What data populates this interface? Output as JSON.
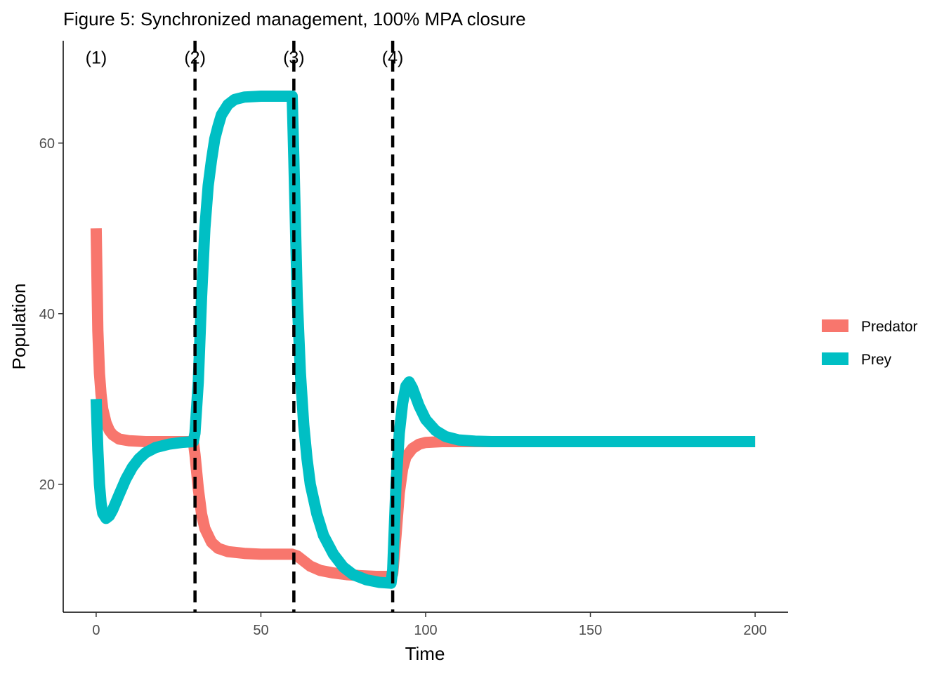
{
  "chart_data": {
    "type": "line",
    "title": "Figure 5: Synchronized management, 100% MPA closure",
    "xlabel": "Time",
    "ylabel": "Population",
    "xlim": [
      -10,
      210
    ],
    "ylim": [
      5,
      72
    ],
    "xticks": [
      0,
      50,
      100,
      150,
      200
    ],
    "yticks": [
      20,
      40,
      60
    ],
    "grid": false,
    "legend_position": "right",
    "vlines": [
      30,
      60,
      90
    ],
    "annotations": [
      {
        "text": "(1)",
        "x": 0,
        "y": 70
      },
      {
        "text": "(2)",
        "x": 30,
        "y": 70
      },
      {
        "text": "(3)",
        "x": 60,
        "y": 70
      },
      {
        "text": "(4)",
        "x": 90,
        "y": 70
      }
    ],
    "series": [
      {
        "name": "Predator",
        "color": "#F8766D",
        "points": [
          [
            0,
            50
          ],
          [
            0.5,
            38
          ],
          [
            1,
            33
          ],
          [
            1.5,
            30.5
          ],
          [
            2,
            28.8
          ],
          [
            3,
            27.2
          ],
          [
            4,
            26.3
          ],
          [
            5,
            25.8
          ],
          [
            7,
            25.3
          ],
          [
            10,
            25.1
          ],
          [
            15,
            25.0
          ],
          [
            20,
            25.0
          ],
          [
            25,
            25.0
          ],
          [
            29.5,
            25.0
          ],
          [
            30,
            23.5
          ],
          [
            31,
            19.5
          ],
          [
            32,
            16.5
          ],
          [
            33,
            14.8
          ],
          [
            35,
            13.2
          ],
          [
            37,
            12.5
          ],
          [
            40,
            12.1
          ],
          [
            45,
            11.9
          ],
          [
            50,
            11.8
          ],
          [
            55,
            11.8
          ],
          [
            59.5,
            11.8
          ],
          [
            61,
            11.6
          ],
          [
            63,
            11.0
          ],
          [
            65,
            10.4
          ],
          [
            68,
            9.9
          ],
          [
            72,
            9.6
          ],
          [
            76,
            9.4
          ],
          [
            80,
            9.3
          ],
          [
            85,
            9.2
          ],
          [
            89.5,
            9.2
          ],
          [
            90,
            9.5
          ],
          [
            91,
            14
          ],
          [
            92,
            19
          ],
          [
            93,
            21.8
          ],
          [
            94,
            23.2
          ],
          [
            96,
            24.2
          ],
          [
            98,
            24.7
          ],
          [
            100,
            24.9
          ],
          [
            105,
            25.0
          ],
          [
            110,
            25.0
          ],
          [
            120,
            25.0
          ],
          [
            150,
            25.0
          ],
          [
            200,
            25.0
          ]
        ]
      },
      {
        "name": "Prey",
        "color": "#00BFC4",
        "points": [
          [
            0,
            30
          ],
          [
            0.5,
            24
          ],
          [
            1,
            20
          ],
          [
            1.5,
            17.8
          ],
          [
            2,
            16.6
          ],
          [
            3,
            16.0
          ],
          [
            4,
            16.3
          ],
          [
            5,
            17.0
          ],
          [
            7,
            18.8
          ],
          [
            9,
            20.6
          ],
          [
            11,
            22.0
          ],
          [
            13,
            23.0
          ],
          [
            15,
            23.7
          ],
          [
            18,
            24.3
          ],
          [
            22,
            24.7
          ],
          [
            26,
            24.9
          ],
          [
            29.5,
            25.0
          ],
          [
            30,
            26
          ],
          [
            31,
            32
          ],
          [
            32,
            42
          ],
          [
            33,
            50
          ],
          [
            34,
            55
          ],
          [
            35,
            58
          ],
          [
            36,
            60.5
          ],
          [
            37,
            62
          ],
          [
            38,
            63.3
          ],
          [
            40,
            64.5
          ],
          [
            42,
            65.1
          ],
          [
            45,
            65.4
          ],
          [
            50,
            65.5
          ],
          [
            55,
            65.5
          ],
          [
            59.5,
            65.5
          ],
          [
            60,
            58
          ],
          [
            61,
            42
          ],
          [
            62,
            33
          ],
          [
            63,
            27
          ],
          [
            64,
            23
          ],
          [
            65,
            20
          ],
          [
            67,
            16.5
          ],
          [
            69,
            14
          ],
          [
            72,
            11.8
          ],
          [
            75,
            10.3
          ],
          [
            78,
            9.4
          ],
          [
            82,
            8.8
          ],
          [
            86,
            8.5
          ],
          [
            89.5,
            8.4
          ],
          [
            90,
            10
          ],
          [
            91,
            20
          ],
          [
            92,
            26
          ],
          [
            93,
            29.5
          ],
          [
            94,
            31.5
          ],
          [
            95,
            32.0
          ],
          [
            96,
            31.3
          ],
          [
            98,
            29.2
          ],
          [
            100,
            27.6
          ],
          [
            103,
            26.3
          ],
          [
            106,
            25.6
          ],
          [
            110,
            25.2
          ],
          [
            115,
            25.05
          ],
          [
            120,
            25.0
          ],
          [
            150,
            25.0
          ],
          [
            200,
            25.0
          ]
        ]
      }
    ]
  }
}
